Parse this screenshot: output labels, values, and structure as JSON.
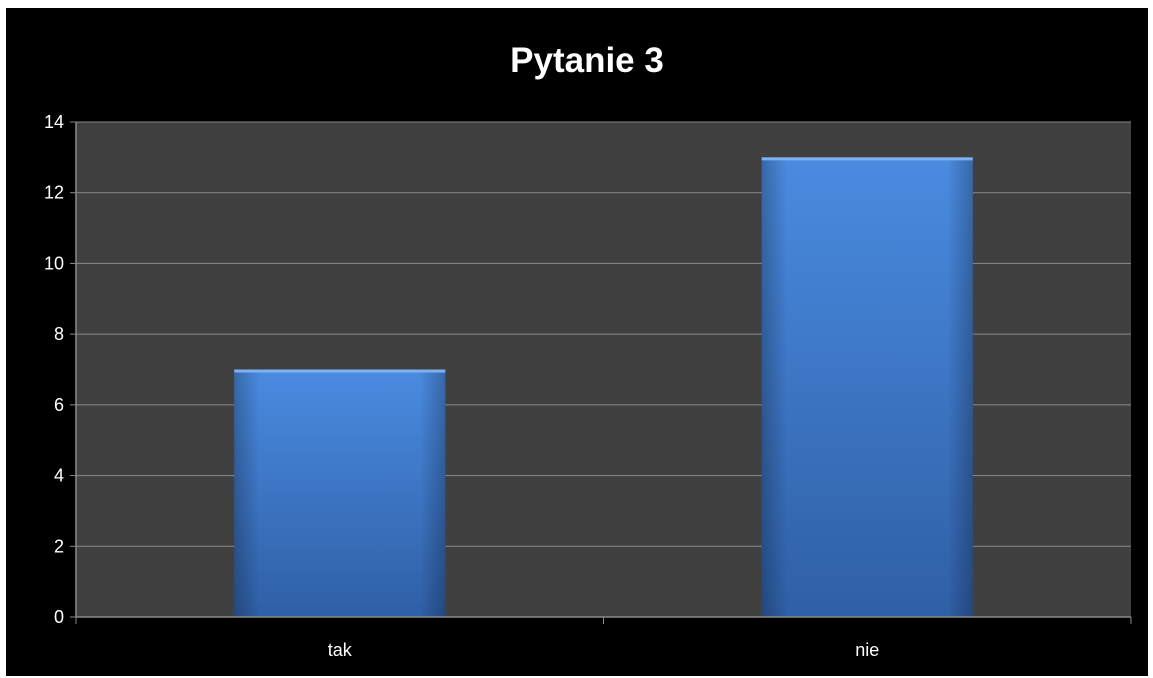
{
  "chart_data": {
    "type": "bar",
    "title": "Pytanie 3",
    "categories": [
      "tak",
      "nie"
    ],
    "values": [
      7,
      13
    ],
    "xlabel": "",
    "ylabel": "",
    "ylim": [
      0,
      14
    ],
    "y_ticks": [
      0,
      2,
      4,
      6,
      8,
      10,
      12,
      14
    ],
    "grid": true,
    "legend": "none"
  },
  "colors": {
    "background": "#000000",
    "plot_area": "#404040",
    "gridline": "#8a8a8a",
    "bar_light": "#4a8be0",
    "bar_dark": "#2f5fa6",
    "text": "#ffffff"
  }
}
